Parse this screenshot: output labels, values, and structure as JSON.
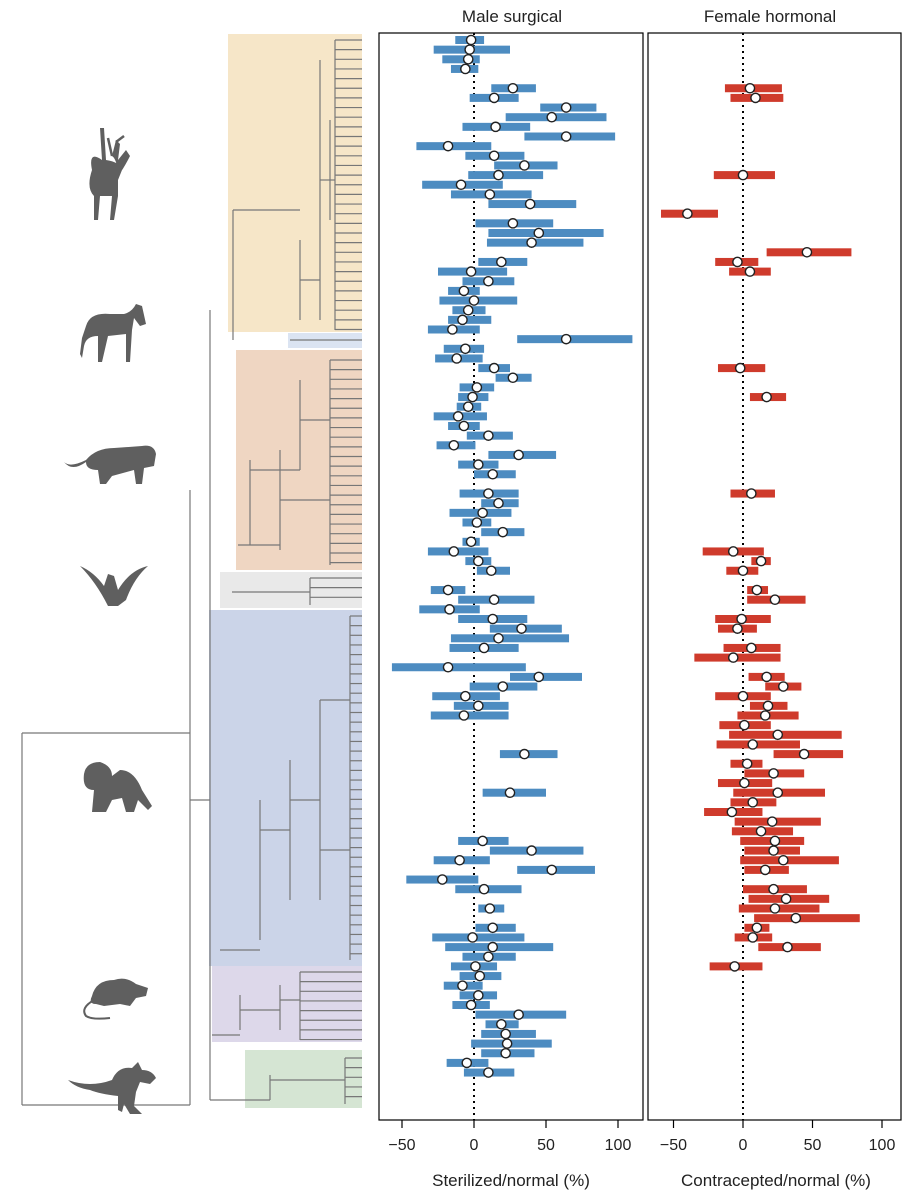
{
  "colors": {
    "clade_artiodactyla": "#f6e6c8",
    "clade_perissodactyla": "#dbe4f2",
    "clade_carnivora": "#efd6c2",
    "clade_chiroptera": "#e9e9e9",
    "clade_primates": "#cbd4e8",
    "clade_rodentia": "#ddd8ea",
    "clade_marsupialia": "#d5e5d3",
    "tree_branch": "#777777",
    "male_bar": "#4d8cc1",
    "female_bar": "#cf3b2c",
    "point_fill": "#ffffff",
    "point_stroke": "#222222"
  },
  "silhouette_icons": [
    "antelope-icon",
    "horse-icon",
    "lion-icon",
    "bat-icon",
    "baboon-icon",
    "rat-icon",
    "kangaroo-icon"
  ],
  "chart_data": [
    {
      "type": "scatter",
      "title": "Male surgical",
      "xlabel": "Sterilized/normal (%)",
      "xlim": [
        -68,
        102
      ],
      "xticks": [
        -50,
        0,
        50,
        100
      ],
      "reference_line": 0,
      "style": "point estimate with horizontal interval bar, one row per species",
      "series": [
        {
          "name": "Male surgical",
          "points": [
            {
              "row": 1,
              "value": -2,
              "low": -13,
              "high": 7
            },
            {
              "row": 2,
              "value": -3,
              "low": -28,
              "high": 25
            },
            {
              "row": 3,
              "value": -4,
              "low": -22,
              "high": 4
            },
            {
              "row": 4,
              "value": -6,
              "low": -16,
              "high": 3
            },
            {
              "row": 6,
              "value": 27,
              "low": 12,
              "high": 43
            },
            {
              "row": 7,
              "value": 14,
              "low": -3,
              "high": 31
            },
            {
              "row": 8,
              "value": 64,
              "low": 46,
              "high": 85
            },
            {
              "row": 9,
              "value": 54,
              "low": 22,
              "high": 92
            },
            {
              "row": 10,
              "value": 15,
              "low": -8,
              "high": 39
            },
            {
              "row": 11,
              "value": 64,
              "low": 35,
              "high": 98
            },
            {
              "row": 12,
              "value": -18,
              "low": -40,
              "high": 12
            },
            {
              "row": 13,
              "value": 14,
              "low": -6,
              "high": 35
            },
            {
              "row": 14,
              "value": 35,
              "low": 14,
              "high": 58
            },
            {
              "row": 15,
              "value": 17,
              "low": -4,
              "high": 48
            },
            {
              "row": 16,
              "value": -9,
              "low": -36,
              "high": 20
            },
            {
              "row": 17,
              "value": 11,
              "low": -16,
              "high": 40
            },
            {
              "row": 18,
              "value": 39,
              "low": 10,
              "high": 71
            },
            {
              "row": 20,
              "value": 27,
              "low": 1,
              "high": 55
            },
            {
              "row": 21,
              "value": 45,
              "low": 10,
              "high": 90
            },
            {
              "row": 22,
              "value": 40,
              "low": 9,
              "high": 76
            },
            {
              "row": 24,
              "value": 19,
              "low": 3,
              "high": 37
            },
            {
              "row": 25,
              "value": -2,
              "low": -25,
              "high": 23
            },
            {
              "row": 26,
              "value": 10,
              "low": -8,
              "high": 28
            },
            {
              "row": 27,
              "value": -7,
              "low": -18,
              "high": 4
            },
            {
              "row": 28,
              "value": 0,
              "low": -24,
              "high": 30
            },
            {
              "row": 29,
              "value": -4,
              "low": -15,
              "high": 8
            },
            {
              "row": 30,
              "value": -8,
              "low": -18,
              "high": 12
            },
            {
              "row": 31,
              "value": -15,
              "low": -32,
              "high": 4
            },
            {
              "row": 32,
              "value": 64,
              "low": 30,
              "high": 110
            },
            {
              "row": 33,
              "value": -6,
              "low": -21,
              "high": 7
            },
            {
              "row": 34,
              "value": -12,
              "low": -27,
              "high": 6
            },
            {
              "row": 35,
              "value": 14,
              "low": 3,
              "high": 25
            },
            {
              "row": 36,
              "value": 27,
              "low": 15,
              "high": 40
            },
            {
              "row": 37,
              "value": 2,
              "low": -10,
              "high": 14
            },
            {
              "row": 38,
              "value": -1,
              "low": -11,
              "high": 10
            },
            {
              "row": 39,
              "value": -4,
              "low": -12,
              "high": 5
            },
            {
              "row": 40,
              "value": -11,
              "low": -28,
              "high": 9
            },
            {
              "row": 41,
              "value": -7,
              "low": -18,
              "high": 4
            },
            {
              "row": 42,
              "value": 10,
              "low": -5,
              "high": 27
            },
            {
              "row": 43,
              "value": -14,
              "low": -26,
              "high": 1
            },
            {
              "row": 44,
              "value": 31,
              "low": 10,
              "high": 57
            },
            {
              "row": 45,
              "value": 3,
              "low": -11,
              "high": 17
            },
            {
              "row": 46,
              "value": 13,
              "low": 0,
              "high": 29
            },
            {
              "row": 48,
              "value": 10,
              "low": -10,
              "high": 31
            },
            {
              "row": 49,
              "value": 17,
              "low": 5,
              "high": 31
            },
            {
              "row": 50,
              "value": 6,
              "low": -17,
              "high": 26
            },
            {
              "row": 51,
              "value": 2,
              "low": -8,
              "high": 12
            },
            {
              "row": 52,
              "value": 20,
              "low": 5,
              "high": 35
            },
            {
              "row": 53,
              "value": -2,
              "low": -8,
              "high": 4
            },
            {
              "row": 54,
              "value": -14,
              "low": -32,
              "high": 10
            },
            {
              "row": 55,
              "value": 3,
              "low": -6,
              "high": 12
            },
            {
              "row": 56,
              "value": 12,
              "low": 2,
              "high": 25
            },
            {
              "row": 58,
              "value": -18,
              "low": -30,
              "high": -6
            },
            {
              "row": 59,
              "value": 14,
              "low": -11,
              "high": 42
            },
            {
              "row": 60,
              "value": -17,
              "low": -38,
              "high": 4
            },
            {
              "row": 61,
              "value": 13,
              "low": -11,
              "high": 37
            },
            {
              "row": 62,
              "value": 33,
              "low": 11,
              "high": 61
            },
            {
              "row": 63,
              "value": 17,
              "low": -16,
              "high": 66
            },
            {
              "row": 64,
              "value": 7,
              "low": -17,
              "high": 31
            },
            {
              "row": 66,
              "value": -18,
              "low": -57,
              "high": 36
            },
            {
              "row": 67,
              "value": 45,
              "low": 25,
              "high": 75
            },
            {
              "row": 68,
              "value": 20,
              "low": -3,
              "high": 44
            },
            {
              "row": 69,
              "value": -6,
              "low": -29,
              "high": 18
            },
            {
              "row": 70,
              "value": 3,
              "low": -14,
              "high": 24
            },
            {
              "row": 71,
              "value": -7,
              "low": -30,
              "high": 24
            },
            {
              "row": 75,
              "value": 35,
              "low": 18,
              "high": 58
            },
            {
              "row": 79,
              "value": 25,
              "low": 6,
              "high": 50
            },
            {
              "row": 84,
              "value": 6,
              "low": -11,
              "high": 24
            },
            {
              "row": 85,
              "value": 40,
              "low": 11,
              "high": 76
            },
            {
              "row": 86,
              "value": -10,
              "low": -28,
              "high": 11
            },
            {
              "row": 87,
              "value": 54,
              "low": 30,
              "high": 84
            },
            {
              "row": 88,
              "value": -22,
              "low": -47,
              "high": 3
            },
            {
              "row": 89,
              "value": 7,
              "low": -13,
              "high": 33
            },
            {
              "row": 91,
              "value": 11,
              "low": 3,
              "high": 21
            },
            {
              "row": 93,
              "value": 13,
              "low": 1,
              "high": 29
            },
            {
              "row": 94,
              "value": -1,
              "low": -29,
              "high": 35
            },
            {
              "row": 95,
              "value": 13,
              "low": -20,
              "high": 55
            },
            {
              "row": 96,
              "value": 10,
              "low": -8,
              "high": 29
            },
            {
              "row": 97,
              "value": 1,
              "low": -16,
              "high": 16
            },
            {
              "row": 98,
              "value": 4,
              "low": -10,
              "high": 19
            },
            {
              "row": 99,
              "value": -8,
              "low": -21,
              "high": 6
            },
            {
              "row": 100,
              "value": 3,
              "low": -10,
              "high": 16
            },
            {
              "row": 101,
              "value": -2,
              "low": -15,
              "high": 11
            },
            {
              "row": 102,
              "value": 31,
              "low": 1,
              "high": 64
            },
            {
              "row": 103,
              "value": 19,
              "low": 8,
              "high": 31
            },
            {
              "row": 104,
              "value": 22,
              "low": 5,
              "high": 43
            },
            {
              "row": 105,
              "value": 23,
              "low": -2,
              "high": 54
            },
            {
              "row": 106,
              "value": 22,
              "low": 5,
              "high": 42
            },
            {
              "row": 107,
              "value": -5,
              "low": -19,
              "high": 10
            },
            {
              "row": 108,
              "value": 10,
              "low": -7,
              "high": 28
            }
          ]
        }
      ]
    },
    {
      "type": "scatter",
      "title": "Female hormonal",
      "xlabel": "Contracepted/normal (%)",
      "xlim": [
        -68,
        102
      ],
      "xticks": [
        -50,
        0,
        50,
        100
      ],
      "reference_line": 0,
      "style": "point estimate with horizontal interval bar, one row per species",
      "series": [
        {
          "name": "Female hormonal",
          "points": [
            {
              "row": 6,
              "value": 5,
              "low": -13,
              "high": 28
            },
            {
              "row": 7,
              "value": 9,
              "low": -9,
              "high": 29
            },
            {
              "row": 15,
              "value": 0,
              "low": -21,
              "high": 23
            },
            {
              "row": 19,
              "value": -40,
              "low": -59,
              "high": -18
            },
            {
              "row": 23,
              "value": 46,
              "low": 17,
              "high": 78
            },
            {
              "row": 24,
              "value": -4,
              "low": -20,
              "high": 11
            },
            {
              "row": 25,
              "value": 5,
              "low": -10,
              "high": 20
            },
            {
              "row": 35,
              "value": -2,
              "low": -18,
              "high": 16
            },
            {
              "row": 38,
              "value": 17,
              "low": 5,
              "high": 31
            },
            {
              "row": 48,
              "value": 6,
              "low": -9,
              "high": 23
            },
            {
              "row": 54,
              "value": -7,
              "low": -29,
              "high": 15
            },
            {
              "row": 55,
              "value": 13,
              "low": 6,
              "high": 20
            },
            {
              "row": 56,
              "value": 0,
              "low": -12,
              "high": 11
            },
            {
              "row": 58,
              "value": 10,
              "low": 3,
              "high": 18
            },
            {
              "row": 59,
              "value": 23,
              "low": 3,
              "high": 45
            },
            {
              "row": 61,
              "value": -1,
              "low": -20,
              "high": 20
            },
            {
              "row": 62,
              "value": -4,
              "low": -18,
              "high": 10
            },
            {
              "row": 64,
              "value": 6,
              "low": -14,
              "high": 27
            },
            {
              "row": 65,
              "value": -7,
              "low": -35,
              "high": 27
            },
            {
              "row": 67,
              "value": 17,
              "low": 4,
              "high": 30
            },
            {
              "row": 68,
              "value": 29,
              "low": 16,
              "high": 42
            },
            {
              "row": 69,
              "value": 0,
              "low": -20,
              "high": 20
            },
            {
              "row": 70,
              "value": 18,
              "low": 5,
              "high": 32
            },
            {
              "row": 71,
              "value": 16,
              "low": -4,
              "high": 40
            },
            {
              "row": 72,
              "value": 1,
              "low": -17,
              "high": 20
            },
            {
              "row": 73,
              "value": 25,
              "low": -10,
              "high": 71
            },
            {
              "row": 74,
              "value": 7,
              "low": -19,
              "high": 41
            },
            {
              "row": 75,
              "value": 44,
              "low": 22,
              "high": 72
            },
            {
              "row": 76,
              "value": 3,
              "low": -9,
              "high": 14
            },
            {
              "row": 77,
              "value": 22,
              "low": 1,
              "high": 44
            },
            {
              "row": 78,
              "value": 1,
              "low": -18,
              "high": 21
            },
            {
              "row": 79,
              "value": 25,
              "low": -7,
              "high": 59
            },
            {
              "row": 80,
              "value": 7,
              "low": -9,
              "high": 24
            },
            {
              "row": 81,
              "value": -8,
              "low": -28,
              "high": 14
            },
            {
              "row": 82,
              "value": 21,
              "low": -6,
              "high": 56
            },
            {
              "row": 83,
              "value": 13,
              "low": -8,
              "high": 36
            },
            {
              "row": 84,
              "value": 23,
              "low": -2,
              "high": 44
            },
            {
              "row": 85,
              "value": 22,
              "low": 1,
              "high": 41
            },
            {
              "row": 86,
              "value": 29,
              "low": -2,
              "high": 69
            },
            {
              "row": 87,
              "value": 16,
              "low": 1,
              "high": 33
            },
            {
              "row": 89,
              "value": 22,
              "low": 0,
              "high": 46
            },
            {
              "row": 90,
              "value": 31,
              "low": 4,
              "high": 62
            },
            {
              "row": 91,
              "value": 23,
              "low": -3,
              "high": 55
            },
            {
              "row": 92,
              "value": 38,
              "low": 8,
              "high": 84
            },
            {
              "row": 93,
              "value": 10,
              "low": 1,
              "high": 19
            },
            {
              "row": 94,
              "value": 7,
              "low": -6,
              "high": 21
            },
            {
              "row": 95,
              "value": 32,
              "low": 11,
              "high": 56
            },
            {
              "row": 97,
              "value": -6,
              "low": -24,
              "high": 14
            }
          ]
        }
      ]
    }
  ]
}
